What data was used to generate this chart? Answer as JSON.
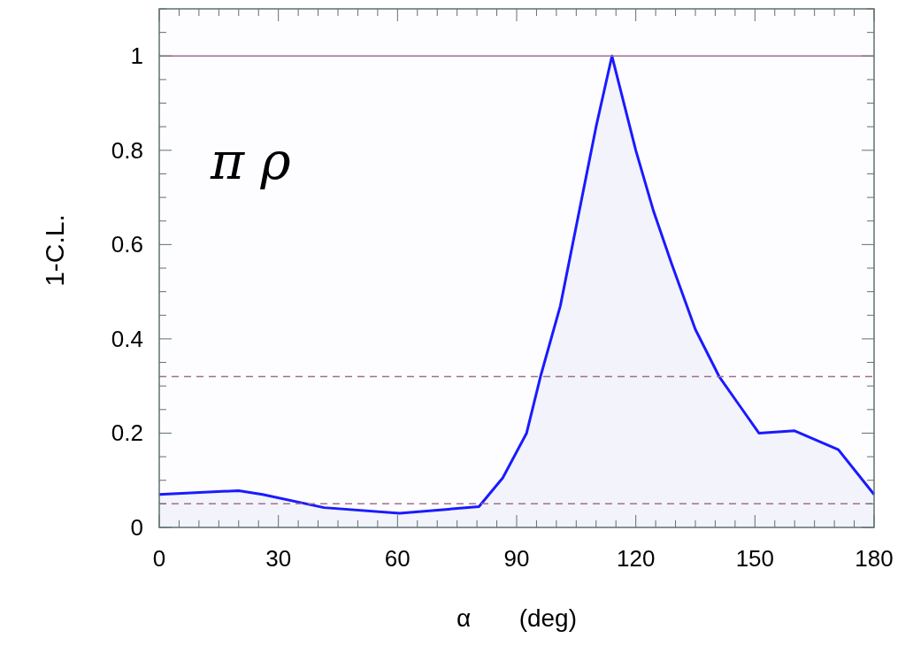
{
  "chart_data": {
    "type": "area",
    "xlabel": "α       (deg)",
    "ylabel": "1-C.L.",
    "annotations": [
      "π ρ"
    ],
    "x": [
      0,
      20,
      26,
      41.5,
      60.5,
      80.5,
      86.5,
      92.5,
      96,
      101,
      105.5,
      110,
      114,
      120,
      124.5,
      129,
      135,
      141,
      146,
      151,
      160,
      171,
      180
    ],
    "series": [
      {
        "color": "#1a1aff",
        "values": [
          0.07,
          0.078,
          0.07,
          0.042,
          0.03,
          0.044,
          0.105,
          0.2,
          0.32,
          0.47,
          0.66,
          0.85,
          1.0,
          0.8,
          0.67,
          0.56,
          0.42,
          0.32,
          0.26,
          0.2,
          0.205,
          0.165,
          0.07
        ]
      }
    ],
    "xlim": [
      0,
      180
    ],
    "xticks": [
      0,
      30,
      60,
      90,
      120,
      150,
      180
    ],
    "ylim": [
      0,
      1.1
    ],
    "yticks": [
      0,
      {
        "value": 0.2,
        "label": "0.2"
      },
      {
        "value": 0.4,
        "label": "0.4"
      },
      {
        "value": 0.6,
        "label": "0.6"
      },
      {
        "value": 0.8,
        "label": "0.8"
      },
      1
    ],
    "ref_lines": [
      {
        "axis": "y",
        "value": 1,
        "color": "#a07090",
        "line_style": "solid"
      },
      {
        "axis": "y",
        "value": 0.32,
        "color": "#a07090",
        "line_style": "dashed"
      },
      {
        "axis": "y",
        "value": 0.05,
        "color": "#a07090",
        "line_style": "dashed"
      }
    ]
  }
}
